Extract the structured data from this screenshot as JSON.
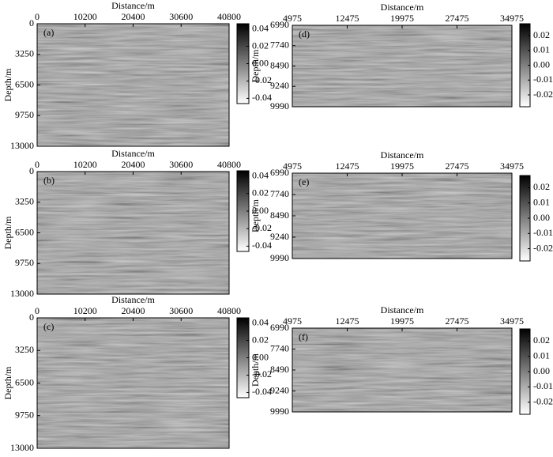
{
  "chart_data": [
    {
      "type": "image",
      "panel_label": "(a)",
      "xlabel": "Distance/m",
      "ylabel": "Depth/m",
      "xlim": [
        0,
        40800
      ],
      "xticks": [
        0,
        10200,
        20400,
        30600,
        40800
      ],
      "ylim": [
        0,
        13000
      ],
      "yticks": [
        0,
        3250,
        6500,
        9750,
        13000
      ],
      "clim": [
        -0.046,
        0.046
      ],
      "cticks": [
        0.04,
        0.02,
        {
          "value": 0,
          "label": "0.00"
        },
        -0.02,
        -0.04
      ]
    },
    {
      "type": "image",
      "panel_label": "(b)",
      "xlabel": "Distance/m",
      "ylabel": "Depth/m",
      "xlim": [
        0,
        40800
      ],
      "xticks": [
        0,
        10200,
        20400,
        30600,
        40800
      ],
      "ylim": [
        0,
        13000
      ],
      "yticks": [
        0,
        3250,
        6500,
        9750,
        13000
      ],
      "clim": [
        -0.046,
        0.046
      ],
      "cticks": [
        0.04,
        0.02,
        {
          "value": 0,
          "label": "0.00"
        },
        -0.02,
        -0.04
      ]
    },
    {
      "type": "image",
      "panel_label": "(c)",
      "xlabel": "Distance/m",
      "ylabel": "Depth/m",
      "xlim": [
        0,
        40800
      ],
      "xticks": [
        0,
        10200,
        20400,
        30600,
        40800
      ],
      "ylim": [
        0,
        13000
      ],
      "yticks": [
        0,
        3250,
        6500,
        9750,
        13000
      ],
      "clim": [
        -0.046,
        0.046
      ],
      "cticks": [
        0.04,
        0.02,
        {
          "value": 0,
          "label": "0.00"
        },
        -0.02,
        -0.04
      ]
    },
    {
      "type": "image",
      "panel_label": "(d)",
      "xlabel": "Distance/m",
      "ylabel": "Depth/m",
      "xlim": [
        4975,
        34975
      ],
      "xticks": [
        4975,
        12475,
        19975,
        27475,
        34975
      ],
      "ylim": [
        6990,
        9990
      ],
      "yticks": [
        6990,
        7740,
        8490,
        9240,
        9990
      ],
      "clim": [
        -0.028,
        0.028
      ],
      "cticks": [
        0.02,
        0.01,
        {
          "value": 0,
          "label": "0.00"
        },
        -0.01,
        -0.02
      ]
    },
    {
      "type": "image",
      "panel_label": "(e)",
      "xlabel": "Distance/m",
      "ylabel": "Depth/m",
      "xlim": [
        4975,
        34975
      ],
      "xticks": [
        4975,
        12475,
        19975,
        27475,
        34975
      ],
      "ylim": [
        6990,
        9990
      ],
      "yticks": [
        6990,
        7740,
        8490,
        9240,
        9990
      ],
      "clim": [
        -0.028,
        0.028
      ],
      "cticks": [
        0.02,
        0.01,
        {
          "value": 0,
          "label": "0.00"
        },
        -0.01,
        -0.02
      ]
    },
    {
      "type": "image",
      "panel_label": "(f)",
      "xlabel": "Distance/m",
      "ylabel": "Depth/m",
      "xlim": [
        4975,
        34975
      ],
      "xticks": [
        4975,
        12475,
        19975,
        27475,
        34975
      ],
      "ylim": [
        6990,
        9990
      ],
      "yticks": [
        6990,
        7740,
        8490,
        9240,
        9990
      ],
      "clim": [
        -0.028,
        0.028
      ],
      "cticks": [
        0.02,
        0.01,
        {
          "value": 0,
          "label": "0.00"
        },
        -0.01,
        -0.02
      ]
    }
  ]
}
